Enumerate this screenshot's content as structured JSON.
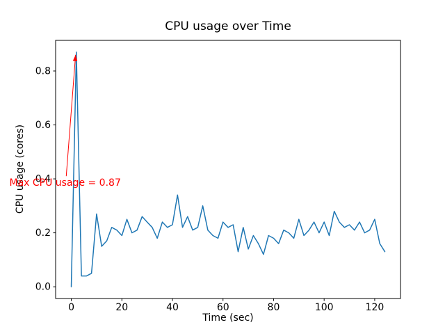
{
  "chart_data": {
    "type": "line",
    "title": "CPU usage over Time",
    "xlabel": "Time (sec)",
    "ylabel": "CPU usage (cores)",
    "x": [
      0,
      2,
      4,
      6,
      8,
      10,
      12,
      14,
      16,
      18,
      20,
      22,
      24,
      26,
      28,
      30,
      32,
      34,
      36,
      38,
      40,
      42,
      44,
      46,
      48,
      50,
      52,
      54,
      56,
      58,
      60,
      62,
      64,
      66,
      68,
      70,
      72,
      74,
      76,
      78,
      80,
      82,
      84,
      86,
      88,
      90,
      92,
      94,
      96,
      98,
      100,
      102,
      104,
      106,
      108,
      110,
      112,
      114,
      116,
      118,
      120,
      122,
      124
    ],
    "y": [
      0.0,
      0.87,
      0.04,
      0.04,
      0.05,
      0.27,
      0.15,
      0.17,
      0.22,
      0.21,
      0.19,
      0.25,
      0.2,
      0.21,
      0.26,
      0.24,
      0.22,
      0.18,
      0.24,
      0.22,
      0.23,
      0.34,
      0.22,
      0.26,
      0.21,
      0.22,
      0.3,
      0.21,
      0.19,
      0.18,
      0.24,
      0.22,
      0.23,
      0.13,
      0.22,
      0.14,
      0.19,
      0.16,
      0.12,
      0.19,
      0.18,
      0.16,
      0.21,
      0.2,
      0.18,
      0.25,
      0.19,
      0.21,
      0.24,
      0.2,
      0.24,
      0.19,
      0.28,
      0.24,
      0.22,
      0.23,
      0.21,
      0.24,
      0.2,
      0.21,
      0.25,
      0.16,
      0.13
    ],
    "xlim": [
      -6.2,
      130.2
    ],
    "ylim": [
      -0.0435,
      0.9135
    ],
    "xticks": [
      0,
      20,
      40,
      60,
      80,
      100,
      120
    ],
    "xtick_labels": [
      "0",
      "20",
      "40",
      "60",
      "80",
      "100",
      "120"
    ],
    "yticks": [
      0.0,
      0.2,
      0.4,
      0.6,
      0.8
    ],
    "ytick_labels": [
      "0.0",
      "0.2",
      "0.4",
      "0.6",
      "0.8"
    ],
    "line_color": "#1f77b4",
    "axes_color": "#000000",
    "background": "#ffffff",
    "grid": false,
    "legend": null,
    "annotation": {
      "text": "Max CPU usage = 0.87",
      "color": "#ff0000",
      "text_x": -24.5,
      "text_y": 0.375,
      "arrow_tail_x": -2.0,
      "arrow_tail_y": 0.41,
      "arrow_tip_x": 1.7,
      "arrow_tip_y": 0.86
    }
  }
}
